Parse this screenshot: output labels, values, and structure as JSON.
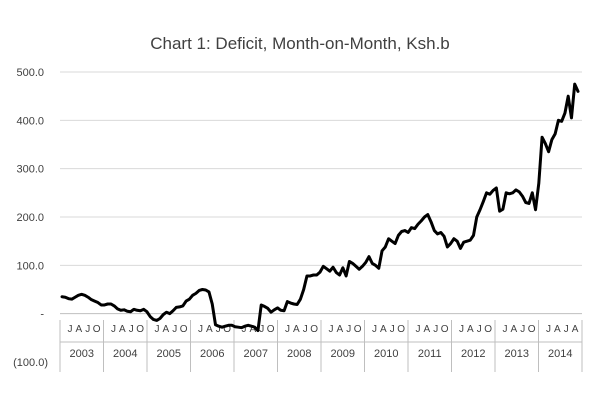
{
  "chart_data": {
    "type": "line",
    "title": "Chart 1: Deficit, Month-on-Month, Ksh.b",
    "xlabel": "",
    "ylabel": "",
    "ylim": [
      -100,
      500
    ],
    "y_ticks": [
      {
        "value": 500,
        "label": "500.0"
      },
      {
        "value": 400,
        "label": "400.0"
      },
      {
        "value": 300,
        "label": "300.0"
      },
      {
        "value": 200,
        "label": "200.0"
      },
      {
        "value": 100,
        "label": "100.0"
      },
      {
        "value": 0,
        "label": "-"
      },
      {
        "value": -100,
        "label": "(100.0)"
      }
    ],
    "month_label_pattern": [
      "J",
      "A",
      "J",
      "O"
    ],
    "years": [
      "2003",
      "2004",
      "2005",
      "2006",
      "2007",
      "2008",
      "2009",
      "2010",
      "2011",
      "2012",
      "2013",
      "2014"
    ],
    "last_year_month_labels": [
      "J",
      "A",
      "J",
      "A"
    ],
    "series": [
      {
        "name": "Deficit",
        "color": "#000000",
        "values": [
          35,
          34,
          31,
          30,
          34,
          38,
          40,
          38,
          34,
          29,
          26,
          23,
          18,
          18,
          20,
          20,
          16,
          10,
          7,
          8,
          5,
          4,
          9,
          7,
          6,
          9,
          4,
          -6,
          -12,
          -14,
          -10,
          -2,
          3,
          0,
          6,
          13,
          14,
          16,
          26,
          30,
          38,
          42,
          48,
          50,
          49,
          45,
          20,
          -23,
          -26,
          -28,
          -26,
          -24,
          -24,
          -27,
          -28,
          -29,
          -26,
          -24,
          -26,
          -28,
          -35,
          18,
          15,
          11,
          3,
          8,
          12,
          7,
          6,
          25,
          22,
          20,
          19,
          30,
          50,
          78,
          78,
          80,
          80,
          86,
          98,
          93,
          88,
          96,
          85,
          80,
          95,
          78,
          108,
          104,
          98,
          92,
          98,
          106,
          118,
          104,
          100,
          94,
          130,
          138,
          155,
          150,
          145,
          162,
          170,
          172,
          168,
          178,
          176,
          185,
          192,
          200,
          205,
          190,
          172,
          165,
          168,
          160,
          138,
          145,
          155,
          150,
          135,
          148,
          150,
          152,
          162,
          200,
          215,
          232,
          250,
          247,
          255,
          260,
          212,
          216,
          250,
          248,
          250,
          256,
          252,
          243,
          230,
          228,
          250,
          215,
          270,
          365,
          352,
          335,
          360,
          372,
          400,
          398,
          415,
          450,
          405,
          475,
          460
        ]
      }
    ]
  }
}
